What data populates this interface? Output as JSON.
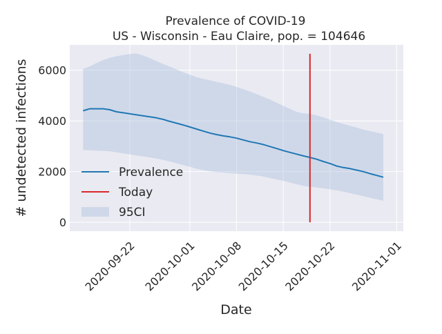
{
  "chart_data": {
    "type": "line",
    "title": "Prevalence of COVID-19",
    "subtitle": "US - Wisconsin - Eau Claire, pop. = 104646",
    "xlabel": "Date",
    "ylabel": "# undetected infections",
    "x_ticks": [
      "2020-09-22",
      "2020-10-01",
      "2020-10-08",
      "2020-10-15",
      "2020-10-22",
      "2020-11-01"
    ],
    "y_ticks": [
      0,
      2000,
      4000,
      6000
    ],
    "ylim": [
      -350,
      7000
    ],
    "xlim": [
      "2020-09-13",
      "2020-11-02"
    ],
    "grid": true,
    "legend_position": "lower-left",
    "series": [
      {
        "name": "Prevalence",
        "color": "#1f77b4",
        "x": [
          "2020-09-15",
          "2020-09-16",
          "2020-09-17",
          "2020-09-18",
          "2020-09-19",
          "2020-09-20",
          "2020-09-21",
          "2020-09-22",
          "2020-09-23",
          "2020-09-24",
          "2020-09-25",
          "2020-09-26",
          "2020-09-27",
          "2020-09-28",
          "2020-09-29",
          "2020-09-30",
          "2020-10-01",
          "2020-10-02",
          "2020-10-03",
          "2020-10-04",
          "2020-10-05",
          "2020-10-06",
          "2020-10-07",
          "2020-10-08",
          "2020-10-09",
          "2020-10-10",
          "2020-10-11",
          "2020-10-12",
          "2020-10-13",
          "2020-10-14",
          "2020-10-15",
          "2020-10-16",
          "2020-10-17",
          "2020-10-18",
          "2020-10-19",
          "2020-10-20",
          "2020-10-21",
          "2020-10-22",
          "2020-10-23",
          "2020-10-24",
          "2020-10-25",
          "2020-10-26",
          "2020-10-27",
          "2020-10-28",
          "2020-10-29",
          "2020-10-30"
        ],
        "y": [
          4400,
          4480,
          4480,
          4480,
          4440,
          4360,
          4320,
          4280,
          4240,
          4200,
          4160,
          4120,
          4060,
          3980,
          3910,
          3840,
          3760,
          3680,
          3600,
          3520,
          3460,
          3410,
          3370,
          3320,
          3250,
          3180,
          3130,
          3070,
          2990,
          2910,
          2830,
          2760,
          2690,
          2620,
          2560,
          2490,
          2400,
          2320,
          2220,
          2160,
          2120,
          2060,
          2000,
          1920,
          1850,
          1780
        ]
      },
      {
        "name": "Today",
        "color": "#d62728",
        "x": [
          "2020-10-19",
          "2020-10-19"
        ],
        "y": [
          0,
          6650
        ]
      }
    ],
    "band": {
      "name": "95CI",
      "color": "#b0c4de",
      "x": [
        "2020-09-15",
        "2020-09-16",
        "2020-09-17",
        "2020-09-18",
        "2020-09-19",
        "2020-09-20",
        "2020-09-21",
        "2020-09-22",
        "2020-09-23",
        "2020-09-24",
        "2020-09-25",
        "2020-09-26",
        "2020-09-27",
        "2020-09-28",
        "2020-09-29",
        "2020-09-30",
        "2020-10-01",
        "2020-10-02",
        "2020-10-03",
        "2020-10-04",
        "2020-10-05",
        "2020-10-06",
        "2020-10-07",
        "2020-10-08",
        "2020-10-09",
        "2020-10-10",
        "2020-10-11",
        "2020-10-12",
        "2020-10-13",
        "2020-10-14",
        "2020-10-15",
        "2020-10-16",
        "2020-10-17",
        "2020-10-18",
        "2020-10-19",
        "2020-10-20",
        "2020-10-21",
        "2020-10-22",
        "2020-10-23",
        "2020-10-24",
        "2020-10-25",
        "2020-10-26",
        "2020-10-27",
        "2020-10-28",
        "2020-10-29",
        "2020-10-30"
      ],
      "upper": [
        6050,
        6150,
        6280,
        6400,
        6490,
        6550,
        6600,
        6640,
        6660,
        6580,
        6480,
        6360,
        6250,
        6140,
        6030,
        5920,
        5820,
        5730,
        5660,
        5600,
        5540,
        5480,
        5420,
        5340,
        5250,
        5160,
        5060,
        4950,
        4840,
        4720,
        4600,
        4480,
        4360,
        4300,
        4280,
        4220,
        4140,
        4050,
        3960,
        3880,
        3810,
        3740,
        3660,
        3600,
        3540,
        3480
      ],
      "lower": [
        2850,
        2840,
        2830,
        2820,
        2800,
        2760,
        2720,
        2680,
        2640,
        2600,
        2560,
        2510,
        2460,
        2400,
        2330,
        2260,
        2190,
        2110,
        2060,
        2010,
        1980,
        1960,
        1940,
        1920,
        1900,
        1880,
        1850,
        1810,
        1750,
        1690,
        1640,
        1570,
        1500,
        1440,
        1400,
        1370,
        1340,
        1300,
        1260,
        1210,
        1150,
        1090,
        1030,
        970,
        910,
        850
      ]
    }
  }
}
